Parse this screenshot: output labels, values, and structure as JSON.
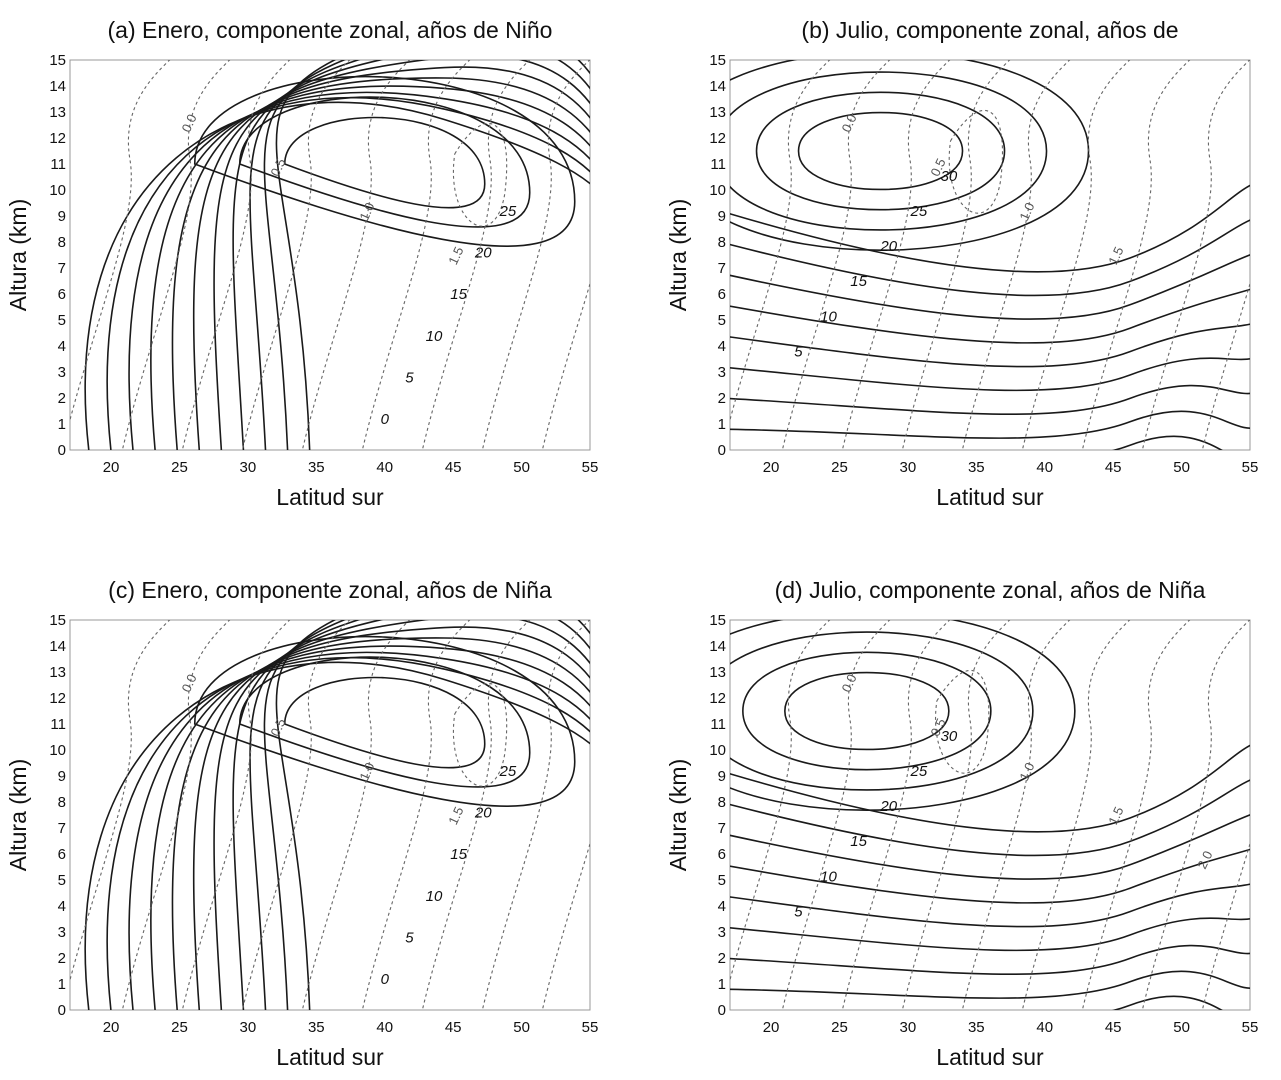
{
  "chart_data": [
    {
      "id": "a",
      "type": "contour",
      "title": "(a) Enero, componente zonal, años de Niño",
      "xlabel": "Latitud sur",
      "ylabel": "Altura (km)",
      "xlim": [
        17,
        55
      ],
      "ylim": [
        0,
        15
      ],
      "xticks": [
        "20",
        "25",
        "30",
        "35",
        "40",
        "45",
        "50",
        "55"
      ],
      "yticks": [
        "0",
        "1",
        "2",
        "3",
        "4",
        "5",
        "6",
        "7",
        "8",
        "9",
        "10",
        "11",
        "12",
        "13",
        "14",
        "15"
      ],
      "solid_contour_values": [
        "0",
        "5",
        "10",
        "15",
        "20",
        "25"
      ],
      "dashed_contour_values": [
        "0.0",
        "0.5",
        "1.0",
        "1.5"
      ],
      "jet_core": {
        "lat": 40,
        "height_km": 11
      }
    },
    {
      "id": "b",
      "type": "contour",
      "title": "(b) Julio, componente zonal, años de",
      "xlabel": "Latitud sur",
      "ylabel": "Altura (km)",
      "xlim": [
        17,
        55
      ],
      "ylim": [
        0,
        15
      ],
      "xticks": [
        "20",
        "25",
        "30",
        "35",
        "40",
        "45",
        "50",
        "55"
      ],
      "yticks": [
        "0",
        "1",
        "2",
        "3",
        "4",
        "5",
        "6",
        "7",
        "8",
        "9",
        "10",
        "11",
        "12",
        "13",
        "14",
        "15"
      ],
      "solid_contour_values": [
        "5",
        "10",
        "15",
        "20",
        "25",
        "30"
      ],
      "dashed_contour_values": [
        "0.0",
        "0.5",
        "1.0",
        "1.5"
      ],
      "jet_core": {
        "lat": 28,
        "height_km": 11.5
      }
    },
    {
      "id": "c",
      "type": "contour",
      "title": "(c) Enero, componente zonal, años de Niña",
      "xlabel": "Latitud sur",
      "ylabel": "Altura (km)",
      "xlim": [
        17,
        55
      ],
      "ylim": [
        0,
        15
      ],
      "xticks": [
        "20",
        "25",
        "30",
        "35",
        "40",
        "45",
        "50",
        "55"
      ],
      "yticks": [
        "0",
        "1",
        "2",
        "3",
        "4",
        "5",
        "6",
        "7",
        "8",
        "9",
        "10",
        "11",
        "12",
        "13",
        "14",
        "15"
      ],
      "solid_contour_values": [
        "0",
        "5",
        "10",
        "15",
        "20",
        "25"
      ],
      "dashed_contour_values": [
        "0.0",
        "0.5",
        "1.0",
        "1.5"
      ],
      "jet_core": {
        "lat": 40,
        "height_km": 11
      }
    },
    {
      "id": "d",
      "type": "contour",
      "title": "(d) Julio, componente zonal, años de Niña",
      "xlabel": "Latitud sur",
      "ylabel": "Altura (km)",
      "xlim": [
        17,
        55
      ],
      "ylim": [
        0,
        15
      ],
      "xticks": [
        "20",
        "25",
        "30",
        "35",
        "40",
        "45",
        "50",
        "55"
      ],
      "yticks": [
        "0",
        "1",
        "2",
        "3",
        "4",
        "5",
        "6",
        "7",
        "8",
        "9",
        "10",
        "11",
        "12",
        "13",
        "14",
        "15"
      ],
      "solid_contour_values": [
        "5",
        "10",
        "15",
        "20",
        "25",
        "30"
      ],
      "dashed_contour_values": [
        "0.0",
        "0.5",
        "1.0",
        "1.5",
        "2.0"
      ],
      "jet_core": {
        "lat": 27,
        "height_km": 11.5
      }
    }
  ]
}
